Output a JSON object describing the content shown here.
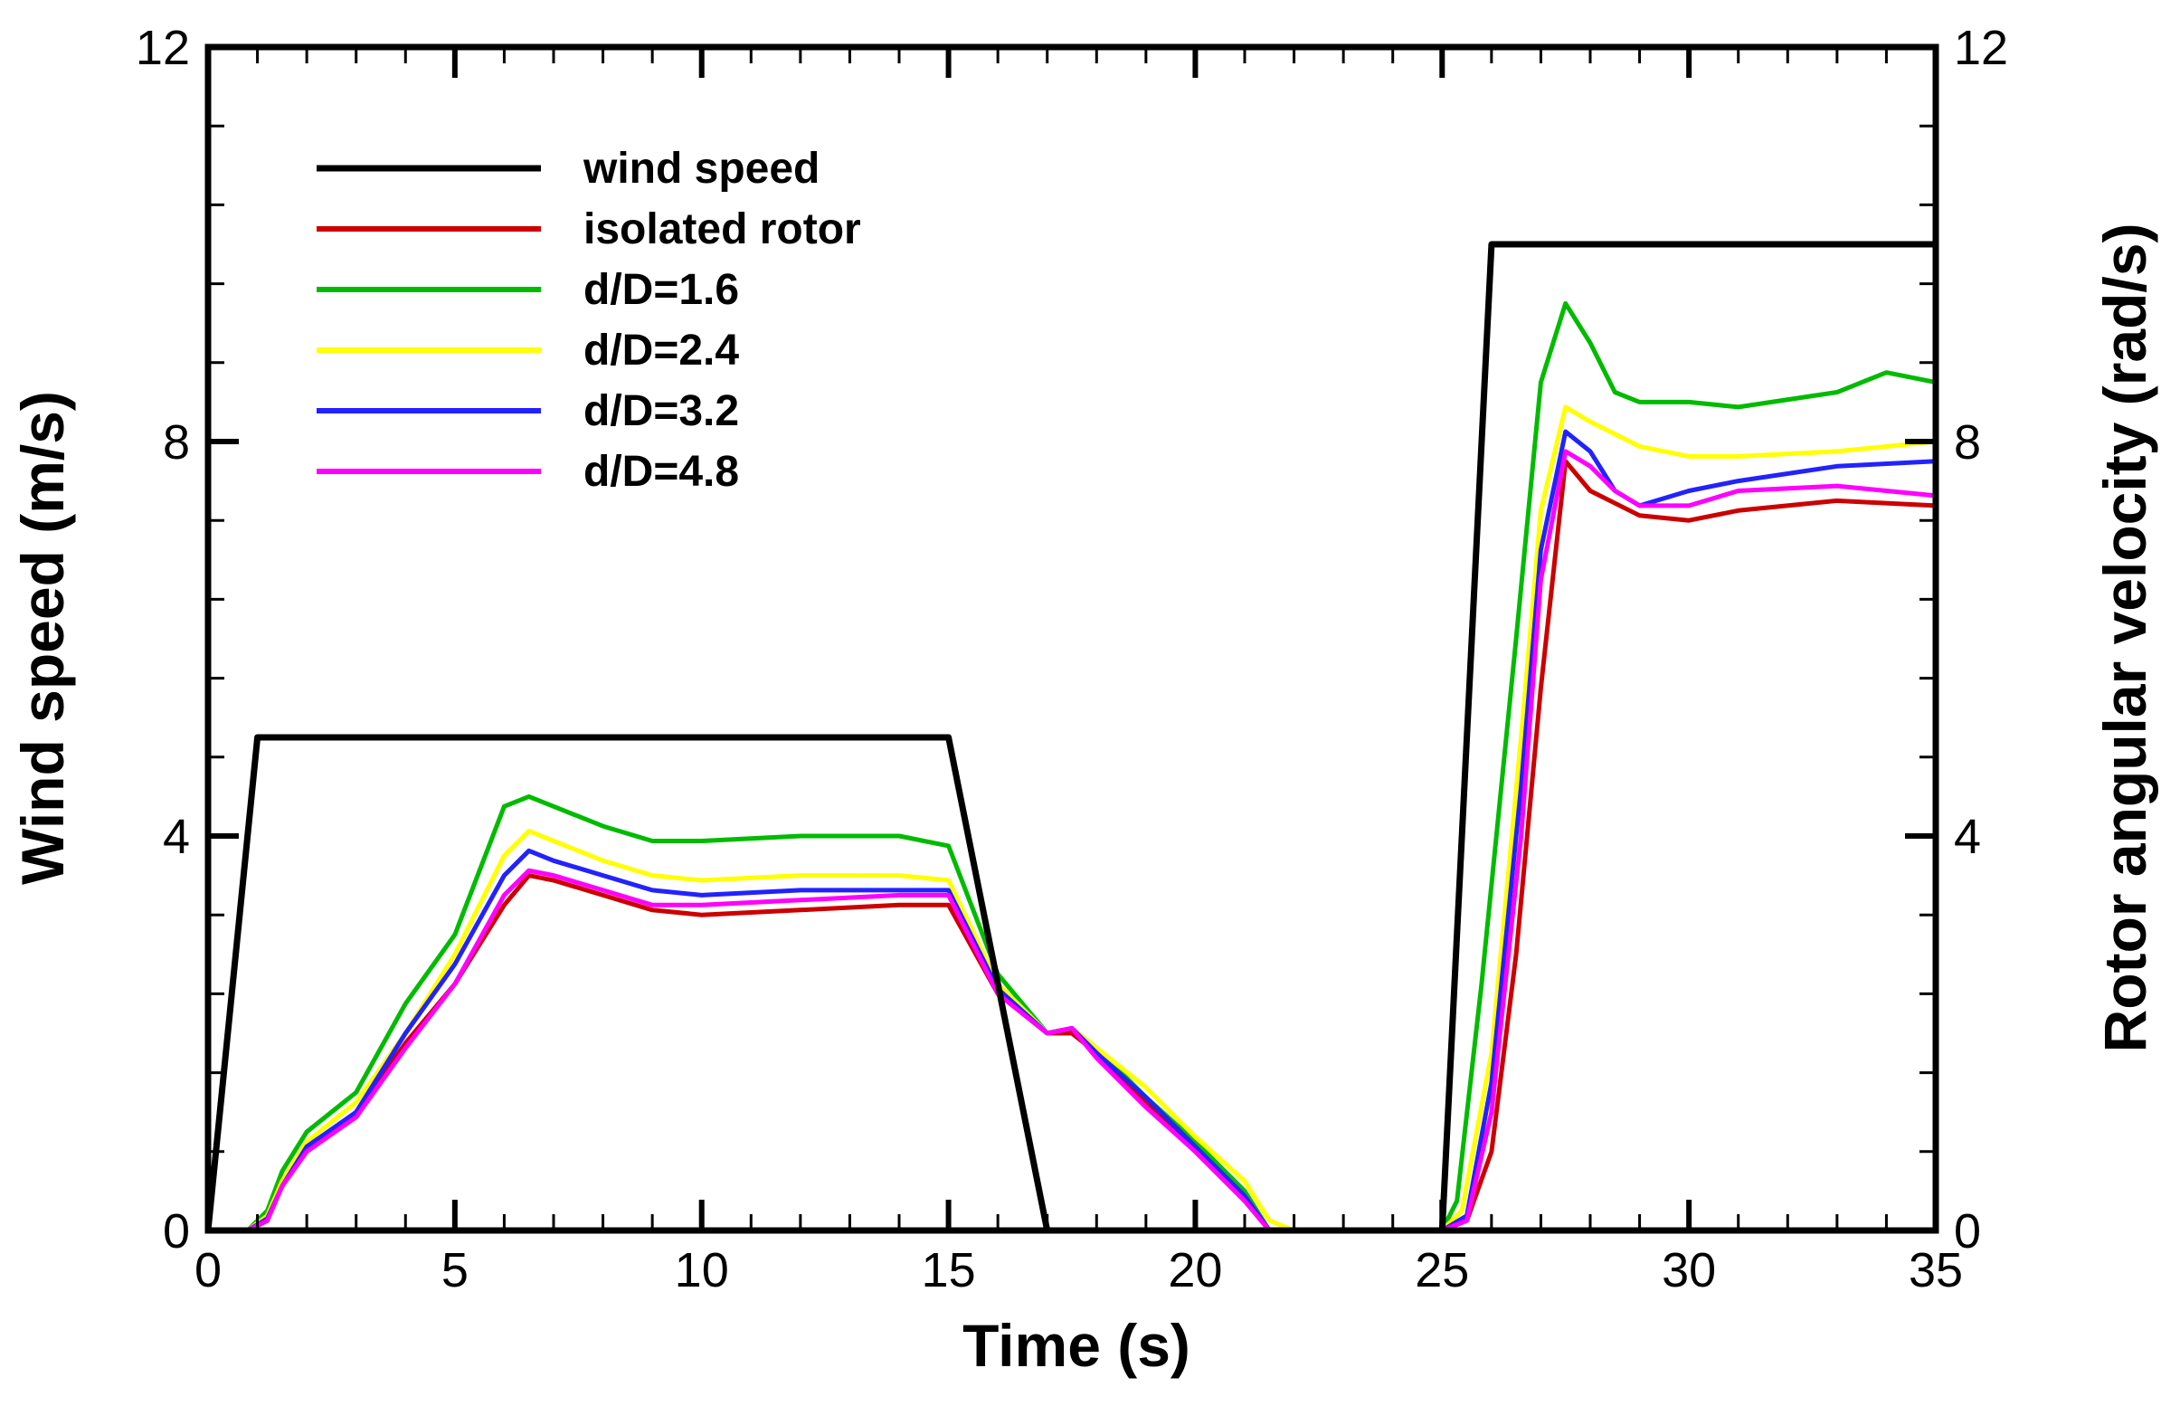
{
  "chart_data": {
    "type": "line",
    "title": "",
    "xlabel": "Time (s)",
    "ylabel": "Wind speed (m/s)",
    "y2label": "Rotor angular velocity (rad/s)",
    "xlim": [
      0,
      35
    ],
    "ylim": [
      0,
      12
    ],
    "y2lim": [
      0,
      12
    ],
    "xticks": [
      0,
      5,
      10,
      15,
      20,
      25,
      30,
      35
    ],
    "yticks": [
      0,
      4,
      8,
      12
    ],
    "y2ticks": [
      0,
      4,
      8,
      12
    ],
    "grid": false,
    "legend_position": "top-left",
    "series": [
      {
        "name": "wind speed",
        "color": "#000000",
        "x": [
          0,
          1,
          15,
          17,
          25,
          26,
          35
        ],
        "y": [
          0,
          5,
          5,
          0,
          0,
          10,
          10
        ]
      },
      {
        "name": "isolated rotor",
        "color": "#cc0000",
        "x": [
          0,
          0.8,
          1.2,
          1.5,
          2,
          3,
          4,
          5,
          6,
          6.5,
          7,
          8,
          9,
          10,
          12,
          14,
          15,
          16,
          17,
          17.5,
          18,
          19,
          20,
          21,
          21.5,
          22,
          25,
          25.5,
          26,
          26.5,
          27,
          27.5,
          28,
          29,
          30,
          31,
          33,
          35
        ],
        "y": [
          0,
          0,
          0.1,
          0.5,
          0.8,
          1.2,
          1.9,
          2.5,
          3.3,
          3.6,
          3.55,
          3.4,
          3.25,
          3.2,
          3.25,
          3.3,
          3.3,
          2.4,
          2.0,
          2.0,
          1.8,
          1.3,
          0.8,
          0.3,
          0,
          0,
          0,
          0.1,
          0.8,
          2.8,
          5.5,
          7.8,
          7.5,
          7.25,
          7.2,
          7.3,
          7.4,
          7.35
        ]
      },
      {
        "name": "d/D=1.6",
        "color": "#00bb00",
        "x": [
          0,
          0.8,
          1.2,
          1.5,
          2,
          3,
          4,
          5,
          6,
          6.5,
          7,
          8,
          9,
          10,
          12,
          14,
          15,
          16,
          17,
          17.5,
          18,
          19,
          20,
          21,
          21.5,
          22,
          25,
          25.3,
          25.8,
          26.5,
          27,
          27.5,
          28,
          28.5,
          29,
          30,
          31,
          33,
          34,
          35
        ],
        "y": [
          0,
          0,
          0.2,
          0.6,
          1.0,
          1.4,
          2.3,
          3.0,
          4.3,
          4.4,
          4.3,
          4.1,
          3.95,
          3.95,
          4.0,
          4.0,
          3.9,
          2.6,
          2.0,
          2.05,
          1.85,
          1.35,
          0.9,
          0.4,
          0,
          0,
          0,
          0.3,
          2.5,
          6.0,
          8.6,
          9.4,
          9.0,
          8.5,
          8.4,
          8.4,
          8.35,
          8.5,
          8.7,
          8.6
        ]
      },
      {
        "name": "d/D=2.4",
        "color": "#ffff00",
        "x": [
          0,
          0.8,
          1.2,
          1.5,
          2,
          3,
          4,
          5,
          6,
          6.5,
          7,
          8,
          9,
          10,
          12,
          14,
          15,
          16,
          17,
          17.5,
          18,
          19,
          20,
          21,
          21.5,
          22,
          25,
          25.4,
          26,
          26.6,
          27,
          27.5,
          28,
          29,
          30,
          31,
          33,
          35
        ],
        "y": [
          0,
          0,
          0.15,
          0.5,
          0.9,
          1.3,
          2.0,
          2.8,
          3.8,
          4.05,
          3.95,
          3.75,
          3.6,
          3.55,
          3.6,
          3.6,
          3.55,
          2.5,
          2.0,
          2.05,
          1.85,
          1.45,
          0.95,
          0.5,
          0.1,
          0,
          0,
          0.2,
          1.8,
          5.0,
          7.3,
          8.35,
          8.2,
          7.95,
          7.85,
          7.85,
          7.9,
          8.0
        ]
      },
      {
        "name": "d/D=3.2",
        "color": "#2222ff",
        "x": [
          0,
          0.8,
          1.2,
          1.5,
          2,
          3,
          4,
          5,
          6,
          6.5,
          7,
          8,
          9,
          10,
          12,
          14,
          15,
          16,
          17,
          17.5,
          18,
          19,
          20,
          21,
          21.5,
          22,
          25,
          25.5,
          26,
          26.6,
          27,
          27.5,
          28,
          28.5,
          29,
          30,
          31,
          33,
          35
        ],
        "y": [
          0,
          0,
          0.12,
          0.45,
          0.85,
          1.2,
          2.0,
          2.7,
          3.6,
          3.85,
          3.75,
          3.6,
          3.45,
          3.4,
          3.45,
          3.45,
          3.45,
          2.45,
          2.0,
          2.05,
          1.8,
          1.35,
          0.85,
          0.35,
          0,
          0,
          0,
          0.15,
          1.5,
          4.5,
          6.9,
          8.1,
          7.9,
          7.5,
          7.35,
          7.5,
          7.6,
          7.75,
          7.8
        ]
      },
      {
        "name": "d/D=4.8",
        "color": "#ff00ff",
        "x": [
          0,
          0.8,
          1.2,
          1.5,
          2,
          3,
          4,
          5,
          6,
          6.5,
          7,
          8,
          9,
          10,
          12,
          14,
          15,
          16,
          17,
          17.5,
          18,
          19,
          20,
          21,
          21.5,
          22,
          25,
          25.5,
          26,
          26.6,
          27,
          27.5,
          28,
          28.5,
          29,
          30,
          31,
          33,
          35
        ],
        "y": [
          0,
          0,
          0.1,
          0.45,
          0.8,
          1.15,
          1.85,
          2.5,
          3.4,
          3.65,
          3.6,
          3.45,
          3.3,
          3.3,
          3.35,
          3.4,
          3.4,
          2.4,
          2.0,
          2.05,
          1.75,
          1.25,
          0.8,
          0.3,
          0,
          0,
          0,
          0.1,
          1.2,
          4.0,
          6.6,
          7.9,
          7.75,
          7.5,
          7.35,
          7.35,
          7.5,
          7.55,
          7.45
        ]
      }
    ]
  }
}
